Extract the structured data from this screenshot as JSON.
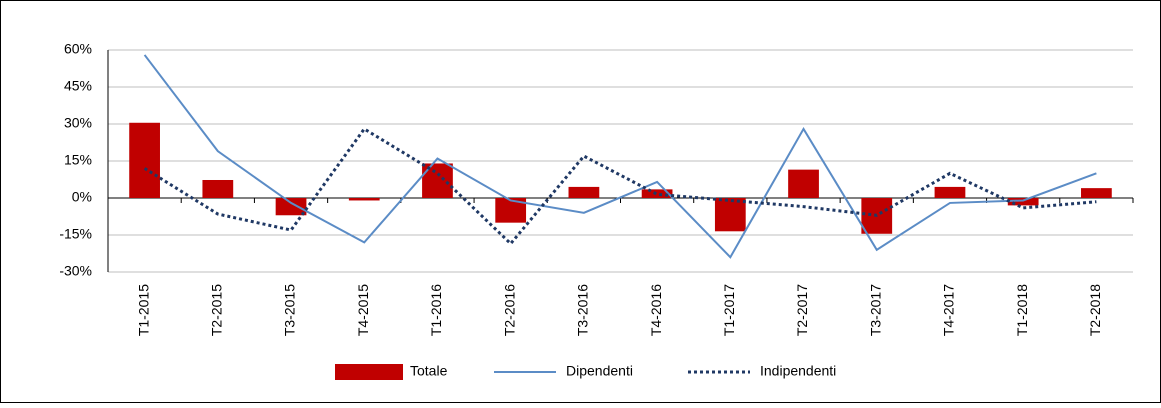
{
  "chart_data": {
    "type": "combo",
    "categories": [
      "T1-2015",
      "T2-2015",
      "T3-2015",
      "T4-2015",
      "T1-2016",
      "T2-2016",
      "T3-2016",
      "T4-2016",
      "T1-2017",
      "T2-2017",
      "T3-2017",
      "T4-2017",
      "T1-2018",
      "T2-2018"
    ],
    "series": [
      {
        "name": "Totale",
        "type": "bar",
        "color": "#c00000",
        "values": [
          30.5,
          7.3,
          -7,
          -1,
          14,
          -10,
          4.5,
          3.5,
          -13.5,
          11.5,
          -14.5,
          4.5,
          -3,
          4
        ]
      },
      {
        "name": "Dipendenti",
        "type": "line",
        "color": "#5b8cc6",
        "dash": "solid",
        "values": [
          58,
          19,
          -2,
          -18,
          16,
          -1,
          -6,
          6.5,
          -24,
          28,
          -21,
          -2,
          -1,
          10
        ]
      },
      {
        "name": "Indipendenti",
        "type": "line",
        "color": "#1f3864",
        "dash": "dotted",
        "values": [
          12,
          -6.5,
          -13,
          28,
          10,
          -18.5,
          17,
          1.5,
          -1,
          -3.5,
          -7,
          10,
          -4,
          -1.5
        ]
      }
    ],
    "ylim": [
      -30,
      60
    ],
    "yticks": [
      {
        "value": -30,
        "label": "-30%"
      },
      {
        "value": -15,
        "label": "-15%"
      },
      {
        "value": 0,
        "label": "0%"
      },
      {
        "value": 15,
        "label": "15%"
      },
      {
        "value": 30,
        "label": "30%"
      },
      {
        "value": 45,
        "label": "45%"
      },
      {
        "value": 60,
        "label": "60%"
      }
    ],
    "grid": true,
    "legend": "bottom"
  }
}
